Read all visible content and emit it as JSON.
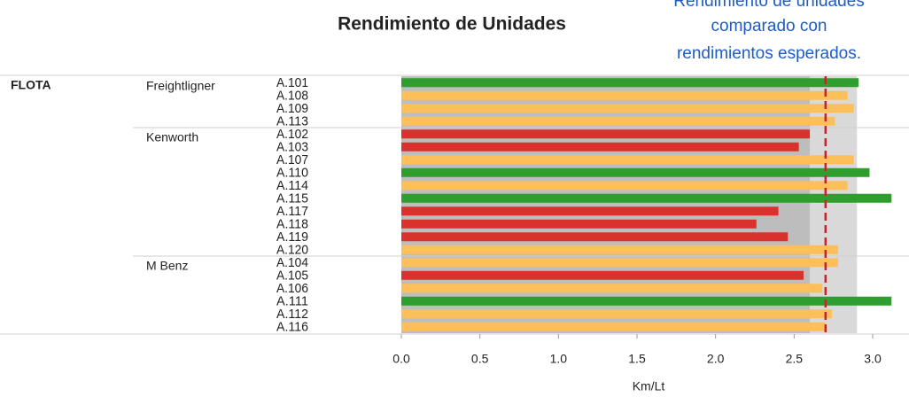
{
  "chart_data": {
    "type": "bar",
    "title": "Rendimiento de Unidades",
    "annotation": [
      "Rendimiento de unidades",
      "comparado con",
      "rendimientos esperados."
    ],
    "header": "FLOTA",
    "xlabel": "Km/Lt",
    "xlim": [
      0,
      3.15
    ],
    "xticks": [
      {
        "value": 0,
        "label": "0.0"
      },
      {
        "value": 0.5,
        "label": "0.5"
      },
      {
        "value": 1,
        "label": "1.0"
      },
      {
        "value": 1.5,
        "label": "1.5"
      },
      {
        "value": 2,
        "label": "2.0"
      },
      {
        "value": 2.5,
        "label": "2.5"
      },
      {
        "value": 3,
        "label": "3.0"
      }
    ],
    "bands": [
      {
        "value": 2.9,
        "color": "#d9d9d9"
      },
      {
        "value": 2.6,
        "color": "#bdbdbd"
      }
    ],
    "target": {
      "value": 2.7,
      "color": "#c0282c"
    },
    "groups": [
      {
        "name": "Freightligner",
        "categories": [
          "A.101",
          "A.108",
          "A.109",
          "A.113"
        ],
        "values": [
          2.91,
          2.84,
          2.88,
          2.76
        ],
        "colors": [
          "#2e9e2e",
          "#fdbf5a",
          "#fdbf5a",
          "#fdbf5a"
        ]
      },
      {
        "name": "Kenworth",
        "categories": [
          "A.102",
          "A.103",
          "A.107",
          "A.110",
          "A.114",
          "A.115",
          "A.117",
          "A.118",
          "A.119",
          "A.120"
        ],
        "values": [
          2.6,
          2.53,
          2.88,
          2.98,
          2.84,
          3.12,
          2.4,
          2.26,
          2.46,
          2.78
        ],
        "colors": [
          "#d9312b",
          "#d9312b",
          "#fdbf5a",
          "#2e9e2e",
          "#fdbf5a",
          "#2e9e2e",
          "#d9312b",
          "#d9312b",
          "#d9312b",
          "#fdbf5a"
        ]
      },
      {
        "name": "M Benz",
        "categories": [
          "A.104",
          "A.105",
          "A.106",
          "A.111",
          "A.112",
          "A.116"
        ],
        "values": [
          2.78,
          2.56,
          2.68,
          3.12,
          2.74,
          2.7
        ],
        "colors": [
          "#fdbf5a",
          "#d9312b",
          "#fdbf5a",
          "#2e9e2e",
          "#fdbf5a",
          "#fdbf5a"
        ]
      }
    ]
  }
}
